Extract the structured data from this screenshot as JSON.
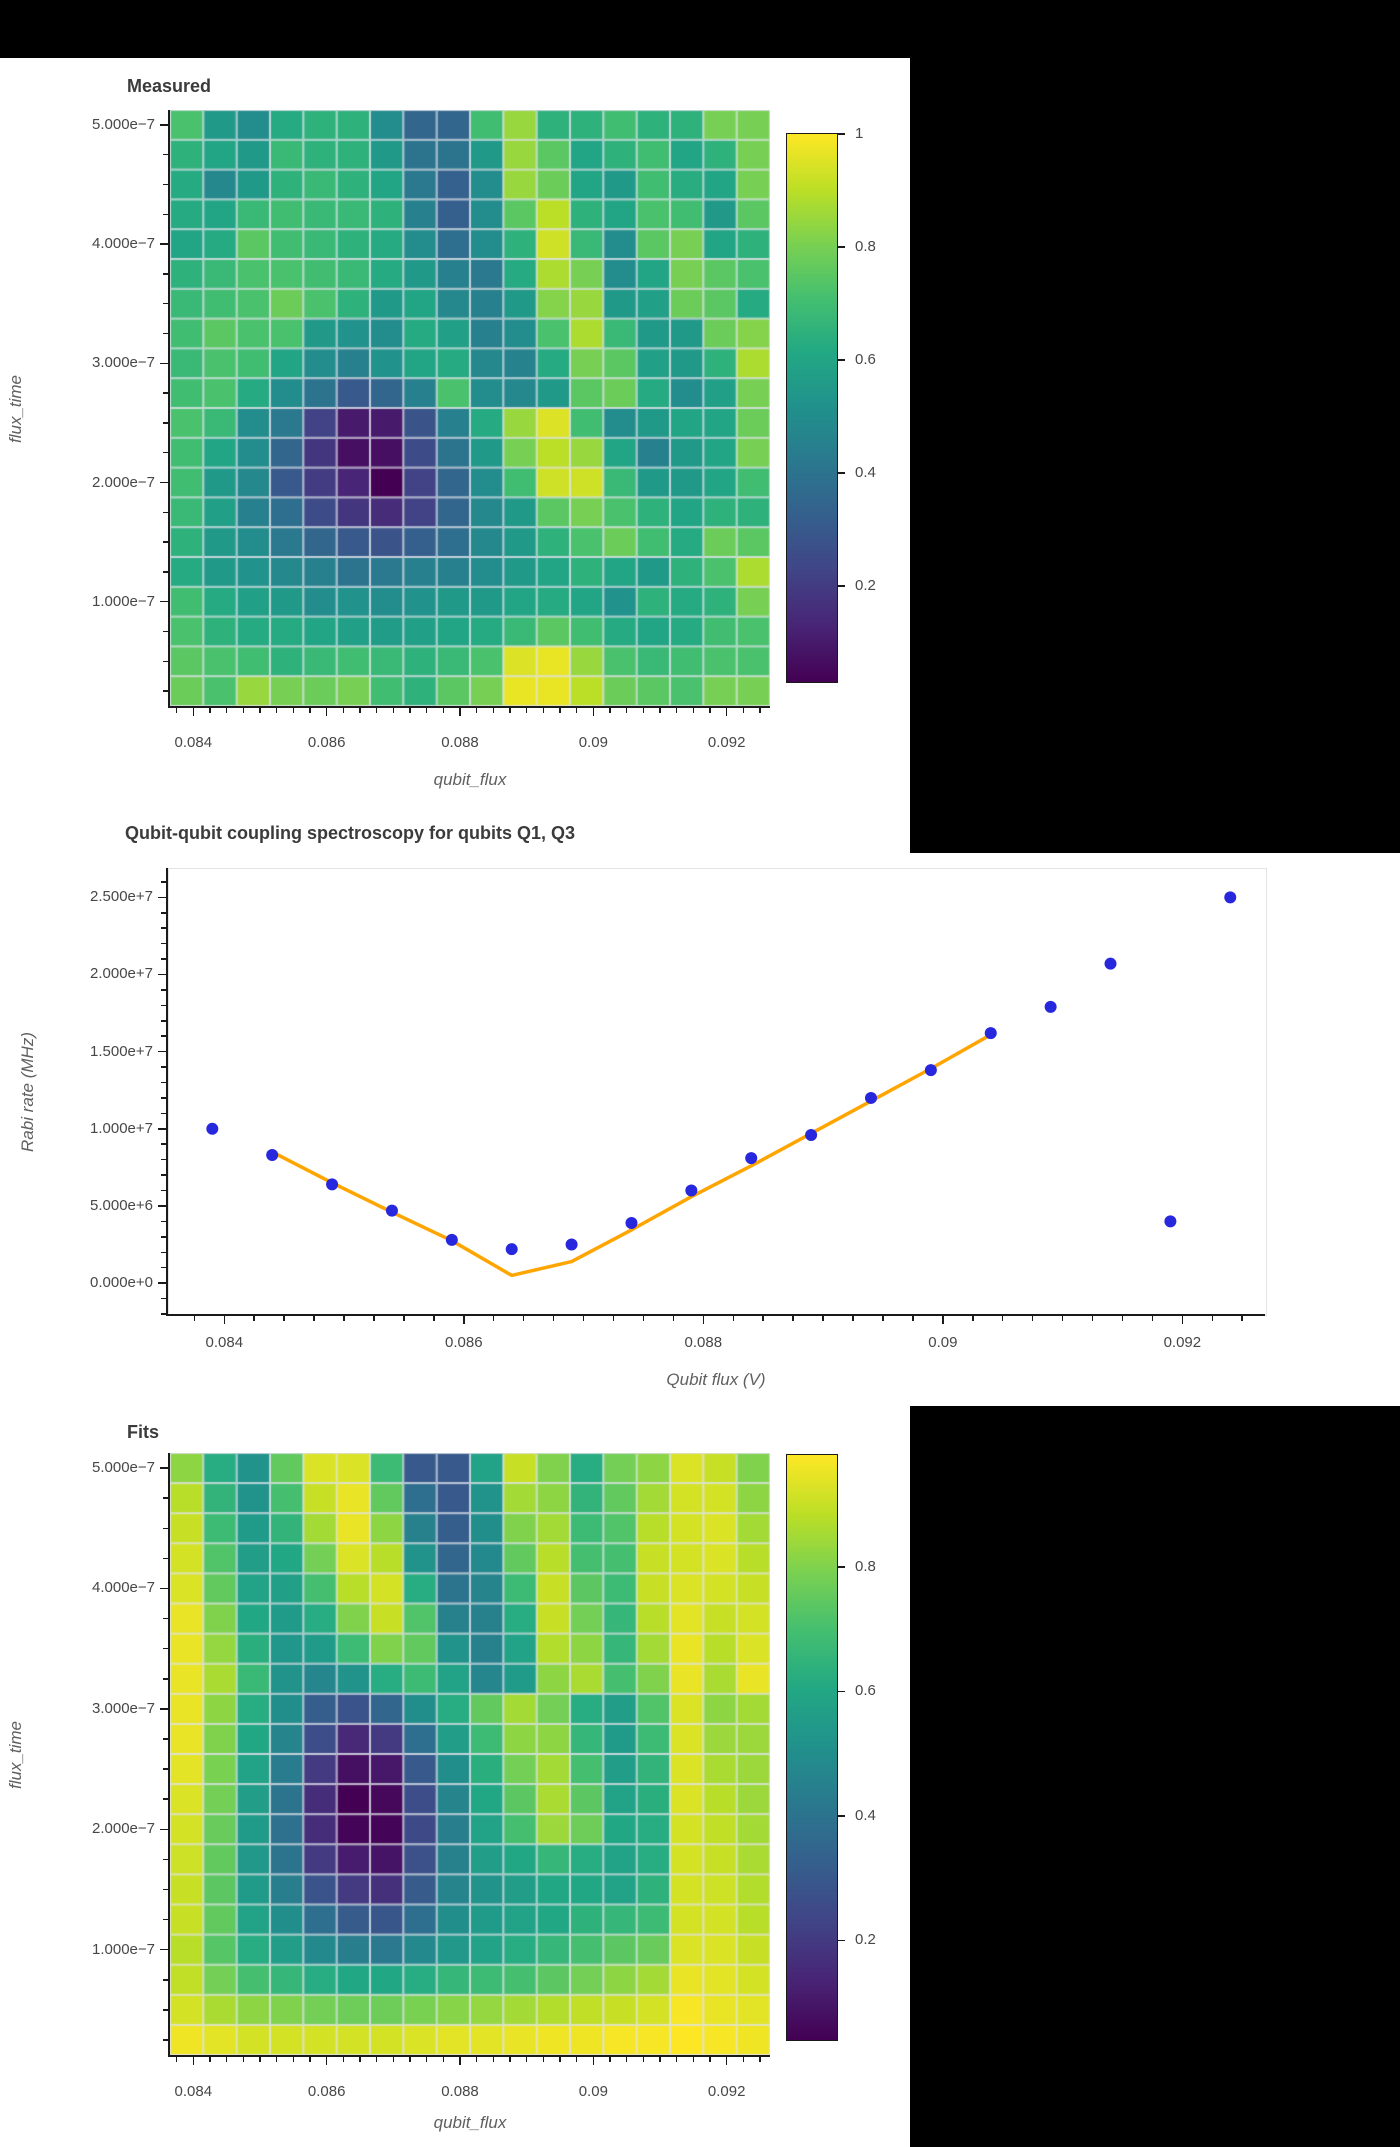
{
  "page": {
    "background_color": "#000000",
    "panel_color": "#ffffff"
  },
  "colors": {
    "title_text": "#3b3b3b",
    "tick_text": "#474747",
    "axis_label_text": "#606060",
    "scatter_dot": "#2727de",
    "fit_line": "#ffa500",
    "mesh_line": "rgba(221,226,233,0.85)",
    "axis_line": "#1a1a1a"
  },
  "colormap_viridis": [
    {
      "t": 0.0,
      "c": "#440154"
    },
    {
      "t": 0.1,
      "c": "#482475"
    },
    {
      "t": 0.2,
      "c": "#414487"
    },
    {
      "t": 0.3,
      "c": "#355f8d"
    },
    {
      "t": 0.4,
      "c": "#2a788e"
    },
    {
      "t": 0.5,
      "c": "#21918c"
    },
    {
      "t": 0.6,
      "c": "#22a884"
    },
    {
      "t": 0.7,
      "c": "#44bf70"
    },
    {
      "t": 0.8,
      "c": "#7ad151"
    },
    {
      "t": 0.9,
      "c": "#bddf26"
    },
    {
      "t": 1.0,
      "c": "#fde725"
    }
  ],
  "chart_data": [
    {
      "type": "heatmap",
      "title": "Measured",
      "xlabel": "qubit_flux",
      "ylabel": "flux_time",
      "x_values": [
        0.0839,
        0.0844,
        0.0849,
        0.0854,
        0.0859,
        0.0864,
        0.0869,
        0.0874,
        0.0879,
        0.0884,
        0.0889,
        0.0894,
        0.0899,
        0.0904,
        0.0909,
        0.0914,
        0.0919,
        0.0924
      ],
      "y_values": [
        5e-07,
        4.75e-07,
        4.5e-07,
        4.25e-07,
        4e-07,
        3.75e-07,
        3.5e-07,
        3.25e-07,
        3e-07,
        2.75e-07,
        2.5e-07,
        2.25e-07,
        2e-07,
        1.75e-07,
        1.5e-07,
        1.25e-07,
        1e-07,
        7.5e-08,
        5e-08,
        2.5e-08
      ],
      "x_ticks": {
        "values": [
          0.084,
          0.086,
          0.088,
          0.09,
          0.092
        ],
        "labels": [
          "0.084",
          "0.086",
          "0.088",
          "0.09",
          "0.092"
        ]
      },
      "y_ticks": {
        "values": [
          5e-07,
          4e-07,
          3e-07,
          2e-07,
          1e-07
        ],
        "labels": [
          "5.000e−7",
          "4.000e−7",
          "3.000e−7",
          "2.000e−7",
          "1.000e−7"
        ]
      },
      "x_minor_step": 0.00025,
      "y_minor_step": 2.5e-08,
      "vmin": 0.03,
      "vmax": 1.0,
      "colorbar": {
        "tick_values": [
          1,
          0.8,
          0.6,
          0.4,
          0.2
        ],
        "tick_labels": [
          "1",
          "0.8",
          "0.6",
          "0.4",
          "0.2"
        ]
      },
      "values": [
        [
          0.72,
          0.55,
          0.5,
          0.62,
          0.65,
          0.65,
          0.5,
          0.35,
          0.35,
          0.7,
          0.85,
          0.65,
          0.65,
          0.7,
          0.65,
          0.65,
          0.8,
          0.8
        ],
        [
          0.65,
          0.6,
          0.55,
          0.68,
          0.65,
          0.65,
          0.55,
          0.4,
          0.4,
          0.55,
          0.85,
          0.75,
          0.6,
          0.65,
          0.7,
          0.6,
          0.65,
          0.8
        ],
        [
          0.62,
          0.48,
          0.55,
          0.65,
          0.68,
          0.65,
          0.6,
          0.42,
          0.33,
          0.5,
          0.85,
          0.78,
          0.6,
          0.55,
          0.7,
          0.63,
          0.6,
          0.8
        ],
        [
          0.62,
          0.6,
          0.68,
          0.7,
          0.68,
          0.68,
          0.65,
          0.45,
          0.32,
          0.5,
          0.75,
          0.9,
          0.65,
          0.6,
          0.72,
          0.7,
          0.55,
          0.75
        ],
        [
          0.6,
          0.62,
          0.75,
          0.7,
          0.68,
          0.65,
          0.62,
          0.5,
          0.38,
          0.5,
          0.65,
          0.93,
          0.68,
          0.5,
          0.75,
          0.8,
          0.6,
          0.65
        ],
        [
          0.65,
          0.68,
          0.72,
          0.72,
          0.7,
          0.68,
          0.62,
          0.55,
          0.45,
          0.42,
          0.62,
          0.88,
          0.8,
          0.5,
          0.6,
          0.8,
          0.75,
          0.72
        ],
        [
          0.68,
          0.7,
          0.72,
          0.78,
          0.72,
          0.65,
          0.55,
          0.6,
          0.48,
          0.45,
          0.55,
          0.82,
          0.85,
          0.55,
          0.58,
          0.78,
          0.75,
          0.62
        ],
        [
          0.7,
          0.75,
          0.72,
          0.72,
          0.55,
          0.52,
          0.5,
          0.62,
          0.58,
          0.45,
          0.5,
          0.72,
          0.88,
          0.68,
          0.55,
          0.55,
          0.78,
          0.82
        ],
        [
          0.68,
          0.72,
          0.7,
          0.6,
          0.5,
          0.45,
          0.52,
          0.6,
          0.62,
          0.48,
          0.46,
          0.62,
          0.8,
          0.75,
          0.58,
          0.55,
          0.65,
          0.88
        ],
        [
          0.7,
          0.72,
          0.62,
          0.5,
          0.4,
          0.3,
          0.35,
          0.45,
          0.72,
          0.5,
          0.48,
          0.55,
          0.75,
          0.78,
          0.62,
          0.5,
          0.58,
          0.8
        ],
        [
          0.72,
          0.68,
          0.5,
          0.42,
          0.22,
          0.1,
          0.1,
          0.28,
          0.45,
          0.62,
          0.85,
          0.95,
          0.7,
          0.5,
          0.55,
          0.6,
          0.6,
          0.78
        ],
        [
          0.7,
          0.6,
          0.5,
          0.35,
          0.18,
          0.07,
          0.07,
          0.25,
          0.4,
          0.55,
          0.8,
          0.9,
          0.85,
          0.6,
          0.45,
          0.55,
          0.6,
          0.8
        ],
        [
          0.7,
          0.55,
          0.48,
          0.3,
          0.2,
          0.13,
          0.03,
          0.22,
          0.35,
          0.5,
          0.7,
          0.93,
          0.93,
          0.68,
          0.55,
          0.55,
          0.6,
          0.7
        ],
        [
          0.68,
          0.58,
          0.45,
          0.38,
          0.25,
          0.18,
          0.15,
          0.22,
          0.35,
          0.48,
          0.55,
          0.75,
          0.8,
          0.72,
          0.65,
          0.6,
          0.65,
          0.65
        ],
        [
          0.65,
          0.55,
          0.5,
          0.42,
          0.35,
          0.3,
          0.28,
          0.32,
          0.38,
          0.48,
          0.55,
          0.65,
          0.72,
          0.78,
          0.7,
          0.62,
          0.78,
          0.75
        ],
        [
          0.62,
          0.55,
          0.52,
          0.48,
          0.45,
          0.4,
          0.42,
          0.45,
          0.45,
          0.5,
          0.55,
          0.6,
          0.65,
          0.6,
          0.55,
          0.65,
          0.72,
          0.88
        ],
        [
          0.7,
          0.62,
          0.58,
          0.55,
          0.5,
          0.52,
          0.5,
          0.52,
          0.55,
          0.55,
          0.6,
          0.62,
          0.6,
          0.52,
          0.65,
          0.62,
          0.65,
          0.8
        ],
        [
          0.72,
          0.65,
          0.62,
          0.62,
          0.6,
          0.58,
          0.56,
          0.58,
          0.6,
          0.62,
          0.68,
          0.75,
          0.7,
          0.62,
          0.6,
          0.62,
          0.7,
          0.72
        ],
        [
          0.75,
          0.72,
          0.7,
          0.65,
          0.68,
          0.7,
          0.68,
          0.65,
          0.68,
          0.72,
          0.95,
          0.97,
          0.85,
          0.72,
          0.68,
          0.7,
          0.72,
          0.72
        ],
        [
          0.78,
          0.72,
          0.85,
          0.8,
          0.78,
          0.8,
          0.7,
          0.65,
          0.75,
          0.8,
          0.97,
          0.97,
          0.9,
          0.78,
          0.75,
          0.72,
          0.8,
          0.8
        ]
      ]
    },
    {
      "type": "scatter",
      "title": "Qubit-qubit coupling spectroscopy for qubits Q1, Q3",
      "xlabel": "Qubit flux (V)",
      "ylabel": "Rabi rate (MHz)",
      "xlim": [
        0.08353,
        0.09269
      ],
      "ylim": [
        -2000000.0,
        26900000.0
      ],
      "x_ticks": {
        "values": [
          0.084,
          0.086,
          0.088,
          0.09,
          0.092
        ],
        "labels": [
          "0.084",
          "0.086",
          "0.088",
          "0.09",
          "0.092"
        ]
      },
      "y_ticks": {
        "values": [
          0,
          5000000.0,
          10000000.0,
          15000000.0,
          20000000.0,
          25000000.0
        ],
        "labels": [
          "0.000e+0",
          "5.000e+6",
          "1.000e+7",
          "1.500e+7",
          "2.000e+7",
          "2.500e+7"
        ]
      },
      "x_minor_step": 0.00025,
      "y_minor_step": 1000000.0,
      "series": [
        {
          "name": "measured-rabi-rates",
          "marker": "circle",
          "x": [
            0.0839,
            0.0844,
            0.0849,
            0.0854,
            0.0859,
            0.0864,
            0.0869,
            0.0874,
            0.0879,
            0.0884,
            0.0889,
            0.0894,
            0.0899,
            0.0904,
            0.0909,
            0.0914,
            0.0919,
            0.0924
          ],
          "y": [
            10000000.0,
            8300000.0,
            6400000.0,
            4700000.0,
            2800000.0,
            2200000.0,
            2500000.0,
            3900000.0,
            6000000.0,
            8100000.0,
            9600000.0,
            12000000.0,
            13800000.0,
            16200000.0,
            17900000.0,
            20700000.0,
            4000000.0,
            25000000.0
          ]
        },
        {
          "name": "fit-line",
          "marker": "line",
          "x": [
            0.0844,
            0.0849,
            0.0854,
            0.0859,
            0.0864,
            0.0869,
            0.0874,
            0.0879,
            0.0884,
            0.0889,
            0.0894,
            0.0899,
            0.0904
          ],
          "y": [
            8500000.0,
            6500000.0,
            4600000.0,
            2750000.0,
            500000.0,
            1400000.0,
            3450000.0,
            5600000.0,
            7600000.0,
            9700000.0,
            11800000.0,
            13900000.0,
            16100000.0
          ]
        }
      ]
    },
    {
      "type": "heatmap",
      "title": "Fits",
      "xlabel": "qubit_flux",
      "ylabel": "flux_time",
      "x_values": [
        0.0839,
        0.0844,
        0.0849,
        0.0854,
        0.0859,
        0.0864,
        0.0869,
        0.0874,
        0.0879,
        0.0884,
        0.0889,
        0.0894,
        0.0899,
        0.0904,
        0.0909,
        0.0914,
        0.0919,
        0.0924
      ],
      "y_values": [
        5e-07,
        4.75e-07,
        4.5e-07,
        4.25e-07,
        4e-07,
        3.75e-07,
        3.5e-07,
        3.25e-07,
        3e-07,
        2.75e-07,
        2.5e-07,
        2.25e-07,
        2e-07,
        1.75e-07,
        1.5e-07,
        1.25e-07,
        1e-07,
        7.5e-08,
        5e-08,
        2.5e-08
      ],
      "x_ticks": {
        "values": [
          0.084,
          0.086,
          0.088,
          0.09,
          0.092
        ],
        "labels": [
          "0.084",
          "0.086",
          "0.088",
          "0.09",
          "0.092"
        ]
      },
      "y_ticks": {
        "values": [
          5e-07,
          4e-07,
          3e-07,
          2e-07,
          1e-07
        ],
        "labels": [
          "5.000e−7",
          "4.000e−7",
          "3.000e−7",
          "2.000e−7",
          "1.000e−7"
        ]
      },
      "x_minor_step": 0.00025,
      "y_minor_step": 2.5e-08,
      "vmin": 0.04,
      "vmax": 0.98,
      "colorbar": {
        "tick_values": [
          0.8,
          0.6,
          0.4,
          0.2
        ],
        "tick_labels": [
          "0.8",
          "0.6",
          "0.4",
          "0.2"
        ]
      },
      "values": [
        [
          0.82,
          0.62,
          0.52,
          0.75,
          0.93,
          0.93,
          0.68,
          0.3,
          0.3,
          0.58,
          0.9,
          0.8,
          0.62,
          0.78,
          0.82,
          0.93,
          0.9,
          0.8
        ],
        [
          0.88,
          0.65,
          0.52,
          0.7,
          0.9,
          0.95,
          0.75,
          0.38,
          0.3,
          0.52,
          0.85,
          0.82,
          0.65,
          0.75,
          0.85,
          0.92,
          0.92,
          0.82
        ],
        [
          0.9,
          0.68,
          0.55,
          0.65,
          0.85,
          0.95,
          0.82,
          0.45,
          0.32,
          0.5,
          0.8,
          0.85,
          0.68,
          0.72,
          0.88,
          0.92,
          0.93,
          0.85
        ],
        [
          0.92,
          0.72,
          0.56,
          0.6,
          0.78,
          0.93,
          0.88,
          0.52,
          0.35,
          0.48,
          0.75,
          0.88,
          0.7,
          0.7,
          0.9,
          0.92,
          0.93,
          0.88
        ],
        [
          0.93,
          0.75,
          0.58,
          0.57,
          0.7,
          0.88,
          0.92,
          0.62,
          0.4,
          0.46,
          0.68,
          0.9,
          0.74,
          0.68,
          0.9,
          0.93,
          0.92,
          0.9
        ],
        [
          0.95,
          0.8,
          0.6,
          0.55,
          0.62,
          0.8,
          0.9,
          0.72,
          0.45,
          0.45,
          0.62,
          0.9,
          0.78,
          0.66,
          0.88,
          0.94,
          0.9,
          0.92
        ],
        [
          0.95,
          0.83,
          0.63,
          0.53,
          0.55,
          0.68,
          0.8,
          0.75,
          0.52,
          0.45,
          0.58,
          0.87,
          0.82,
          0.66,
          0.85,
          0.95,
          0.88,
          0.93
        ],
        [
          0.95,
          0.86,
          0.67,
          0.52,
          0.47,
          0.52,
          0.62,
          0.68,
          0.58,
          0.47,
          0.55,
          0.82,
          0.86,
          0.7,
          0.8,
          0.95,
          0.86,
          0.95
        ],
        [
          0.95,
          0.82,
          0.62,
          0.5,
          0.32,
          0.28,
          0.35,
          0.5,
          0.62,
          0.75,
          0.85,
          0.78,
          0.62,
          0.56,
          0.72,
          0.93,
          0.82,
          0.85
        ],
        [
          0.95,
          0.8,
          0.6,
          0.46,
          0.26,
          0.15,
          0.2,
          0.38,
          0.56,
          0.68,
          0.82,
          0.82,
          0.66,
          0.55,
          0.68,
          0.93,
          0.84,
          0.84
        ],
        [
          0.94,
          0.79,
          0.58,
          0.43,
          0.2,
          0.08,
          0.1,
          0.3,
          0.5,
          0.63,
          0.78,
          0.85,
          0.7,
          0.56,
          0.65,
          0.93,
          0.86,
          0.84
        ],
        [
          0.93,
          0.78,
          0.56,
          0.4,
          0.16,
          0.04,
          0.06,
          0.26,
          0.46,
          0.6,
          0.74,
          0.86,
          0.74,
          0.58,
          0.63,
          0.93,
          0.88,
          0.84
        ],
        [
          0.92,
          0.76,
          0.55,
          0.39,
          0.16,
          0.05,
          0.05,
          0.25,
          0.44,
          0.58,
          0.7,
          0.84,
          0.77,
          0.6,
          0.62,
          0.92,
          0.89,
          0.85
        ],
        [
          0.91,
          0.75,
          0.54,
          0.4,
          0.2,
          0.11,
          0.09,
          0.27,
          0.45,
          0.56,
          0.6,
          0.66,
          0.62,
          0.58,
          0.62,
          0.92,
          0.9,
          0.86
        ],
        [
          0.9,
          0.74,
          0.55,
          0.44,
          0.28,
          0.2,
          0.17,
          0.31,
          0.46,
          0.52,
          0.56,
          0.6,
          0.6,
          0.58,
          0.64,
          0.92,
          0.91,
          0.87
        ],
        [
          0.9,
          0.75,
          0.58,
          0.5,
          0.38,
          0.31,
          0.29,
          0.38,
          0.5,
          0.55,
          0.58,
          0.6,
          0.64,
          0.66,
          0.68,
          0.92,
          0.92,
          0.88
        ],
        [
          0.88,
          0.73,
          0.62,
          0.56,
          0.48,
          0.44,
          0.42,
          0.48,
          0.54,
          0.58,
          0.62,
          0.66,
          0.7,
          0.74,
          0.76,
          0.93,
          0.93,
          0.9
        ],
        [
          0.89,
          0.78,
          0.7,
          0.66,
          0.62,
          0.6,
          0.6,
          0.62,
          0.66,
          0.68,
          0.7,
          0.74,
          0.78,
          0.82,
          0.85,
          0.95,
          0.94,
          0.92
        ],
        [
          0.92,
          0.86,
          0.82,
          0.8,
          0.78,
          0.77,
          0.77,
          0.79,
          0.81,
          0.83,
          0.85,
          0.87,
          0.89,
          0.9,
          0.92,
          0.97,
          0.95,
          0.94
        ],
        [
          0.96,
          0.94,
          0.92,
          0.92,
          0.92,
          0.92,
          0.92,
          0.93,
          0.94,
          0.94,
          0.95,
          0.96,
          0.96,
          0.97,
          0.97,
          0.98,
          0.97,
          0.96
        ]
      ]
    }
  ]
}
